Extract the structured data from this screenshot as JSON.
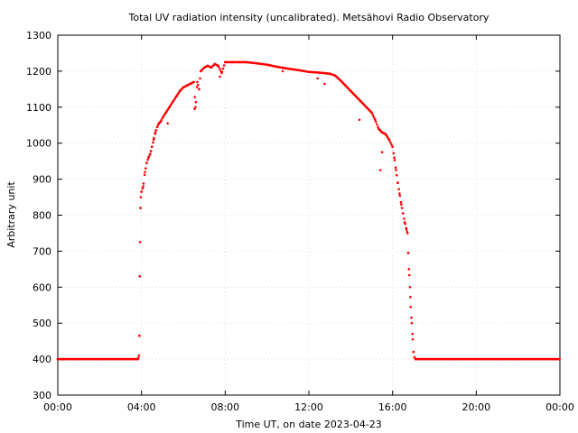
{
  "chart_data": {
    "type": "scatter",
    "title": "Total UV radiation intensity (uncalibrated). Metsähovi Radio Observatory",
    "xlabel": "Time UT, on date 2023-04-23",
    "ylabel": "Arbitrary unit",
    "xlim": [
      "00:00",
      "24:00"
    ],
    "ylim": [
      300,
      1300
    ],
    "x_ticks": [
      "00:00",
      "04:00",
      "08:00",
      "12:00",
      "16:00",
      "20:00",
      "00:00"
    ],
    "y_ticks": [
      "300",
      "400",
      "500",
      "600",
      "700",
      "800",
      "900",
      "1000",
      "1100",
      "1200",
      "1300"
    ],
    "grid": true,
    "marker_color": "#ff0000",
    "series": [
      {
        "values": [
          [
            "00:00",
            400
          ],
          [
            "01:00",
            400
          ],
          [
            "02:00",
            400
          ],
          [
            "03:00",
            400
          ],
          [
            "03:50",
            400
          ],
          [
            "03:53",
            410
          ],
          [
            "03:54",
            465
          ],
          [
            "03:55",
            630
          ],
          [
            "03:56",
            725
          ],
          [
            "03:57",
            820
          ],
          [
            "03:58",
            850
          ],
          [
            "04:00",
            865
          ],
          [
            "04:05",
            880
          ],
          [
            "04:10",
            920
          ],
          [
            "04:15",
            945
          ],
          [
            "04:20",
            960
          ],
          [
            "04:25",
            970
          ],
          [
            "04:30",
            990
          ],
          [
            "04:35",
            1010
          ],
          [
            "04:40",
            1030
          ],
          [
            "04:45",
            1045
          ],
          [
            "04:50",
            1055
          ],
          [
            "04:55",
            1060
          ],
          [
            "05:00",
            1070
          ],
          [
            "05:10",
            1085
          ],
          [
            "05:20",
            1100
          ],
          [
            "05:30",
            1115
          ],
          [
            "05:40",
            1130
          ],
          [
            "05:50",
            1145
          ],
          [
            "06:00",
            1155
          ],
          [
            "06:10",
            1160
          ],
          [
            "06:20",
            1165
          ],
          [
            "06:30",
            1170
          ],
          [
            "06:35",
            1100
          ],
          [
            "06:40",
            1170
          ],
          [
            "06:45",
            1150
          ],
          [
            "06:50",
            1200
          ],
          [
            "07:00",
            1210
          ],
          [
            "07:10",
            1215
          ],
          [
            "07:20",
            1210
          ],
          [
            "07:30",
            1220
          ],
          [
            "07:40",
            1215
          ],
          [
            "07:50",
            1195
          ],
          [
            "08:00",
            1225
          ],
          [
            "08:20",
            1225
          ],
          [
            "08:40",
            1225
          ],
          [
            "09:00",
            1225
          ],
          [
            "09:30",
            1222
          ],
          [
            "10:00",
            1218
          ],
          [
            "10:30",
            1212
          ],
          [
            "11:00",
            1207
          ],
          [
            "11:30",
            1203
          ],
          [
            "12:00",
            1198
          ],
          [
            "12:30",
            1196
          ],
          [
            "13:00",
            1193
          ],
          [
            "13:15",
            1188
          ],
          [
            "13:30",
            1175
          ],
          [
            "13:45",
            1160
          ],
          [
            "14:00",
            1145
          ],
          [
            "14:15",
            1130
          ],
          [
            "14:30",
            1115
          ],
          [
            "14:45",
            1100
          ],
          [
            "15:00",
            1085
          ],
          [
            "15:10",
            1065
          ],
          [
            "15:20",
            1040
          ],
          [
            "15:30",
            1030
          ],
          [
            "15:40",
            1025
          ],
          [
            "15:50",
            1010
          ],
          [
            "16:00",
            990
          ],
          [
            "16:05",
            960
          ],
          [
            "16:10",
            925
          ],
          [
            "16:15",
            890
          ],
          [
            "16:20",
            860
          ],
          [
            "16:25",
            830
          ],
          [
            "16:30",
            805
          ],
          [
            "16:35",
            780
          ],
          [
            "16:40",
            760
          ],
          [
            "16:43",
            750
          ],
          [
            "16:45",
            695
          ],
          [
            "16:47",
            650
          ],
          [
            "16:50",
            600
          ],
          [
            "16:52",
            545
          ],
          [
            "16:55",
            500
          ],
          [
            "16:58",
            455
          ],
          [
            "17:00",
            420
          ],
          [
            "17:03",
            405
          ],
          [
            "17:06",
            400
          ],
          [
            "18:00",
            400
          ],
          [
            "19:00",
            400
          ],
          [
            "20:00",
            400
          ],
          [
            "21:00",
            400
          ],
          [
            "22:00",
            400
          ],
          [
            "23:00",
            400
          ],
          [
            "23:59",
            400
          ]
        ]
      }
    ],
    "outliers": [
      [
        "05:15",
        1055
      ],
      [
        "06:32",
        1095
      ],
      [
        "07:45",
        1185
      ],
      [
        "10:45",
        1200
      ],
      [
        "12:25",
        1180
      ],
      [
        "12:45",
        1165
      ],
      [
        "14:25",
        1065
      ],
      [
        "15:25",
        925
      ],
      [
        "15:30",
        975
      ]
    ]
  }
}
